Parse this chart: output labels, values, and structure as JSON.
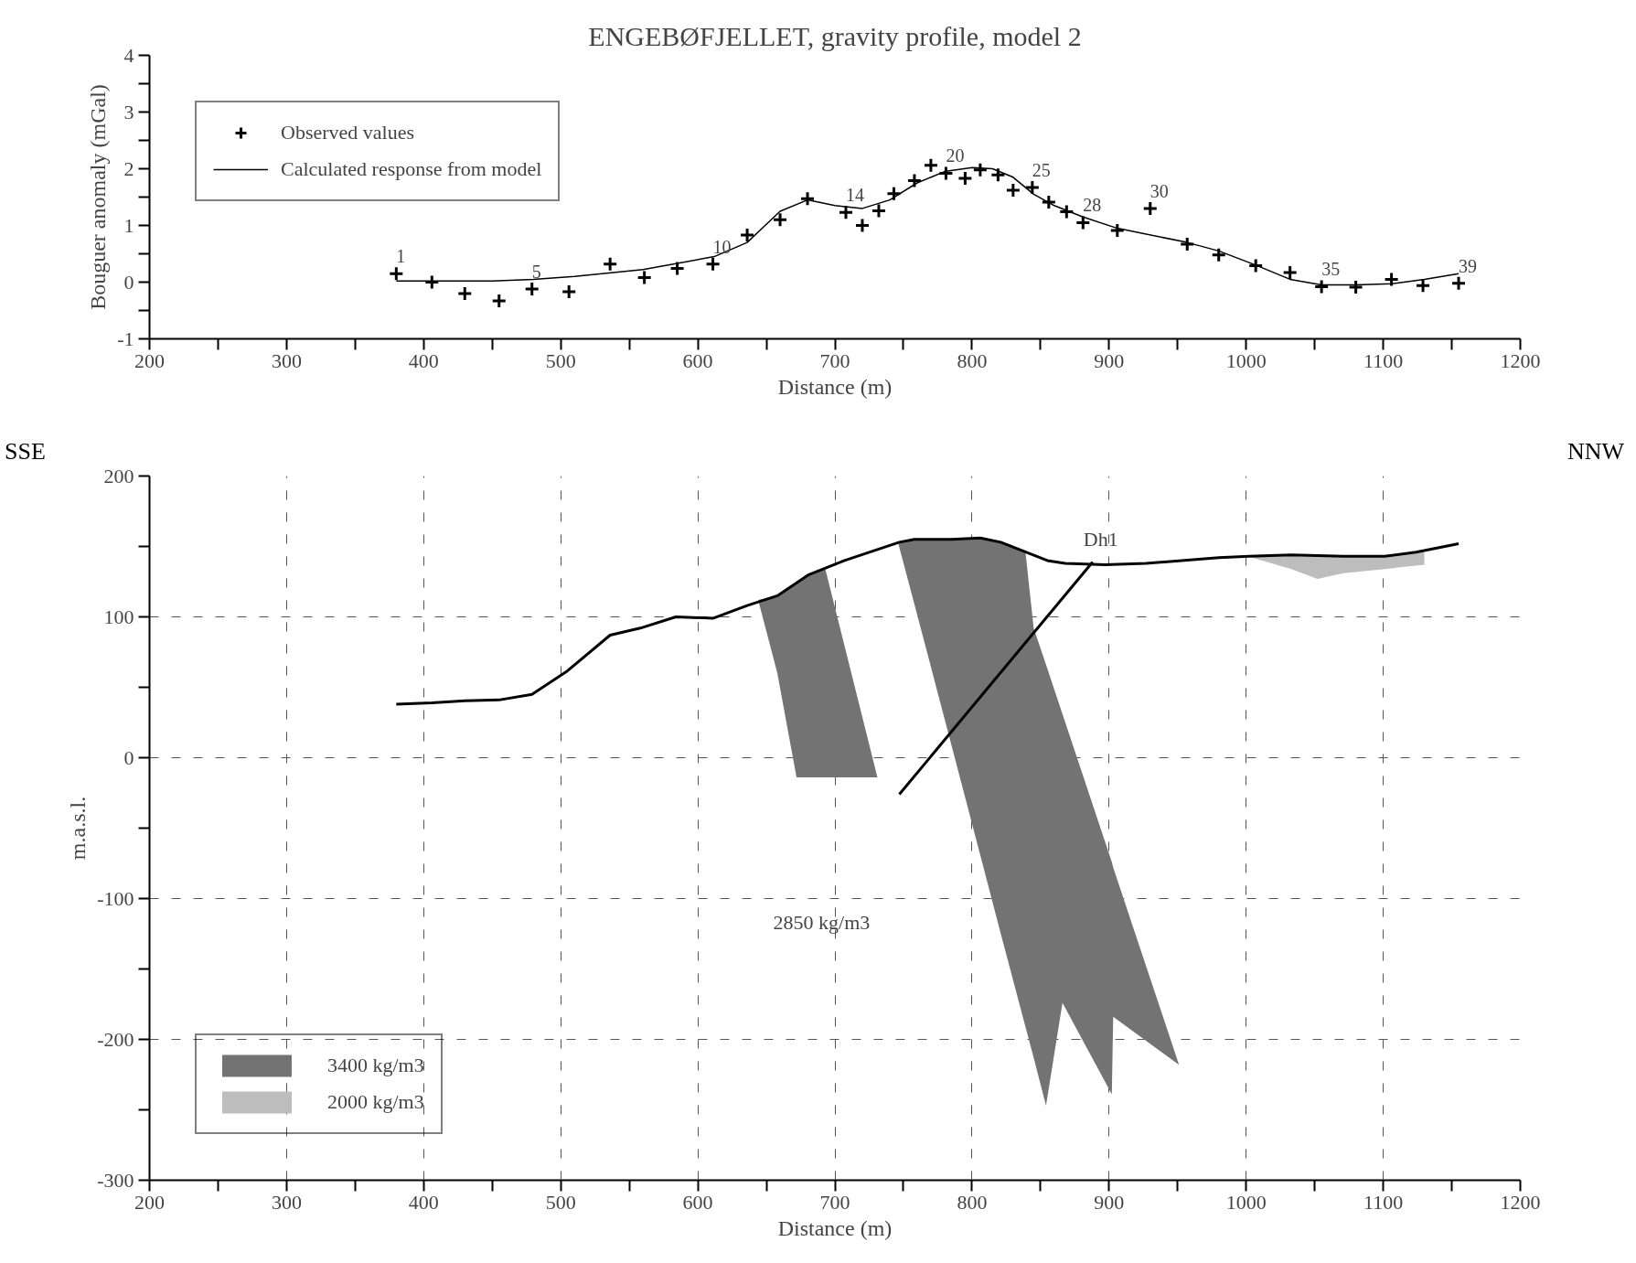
{
  "chart_data": [
    {
      "type": "line",
      "title": "ENGEBØFJELLET, gravity profile, model 2",
      "xlabel": "Distance (m)",
      "ylabel": "Bouguer anomaly (mGal)",
      "xlim": [
        200,
        1200
      ],
      "ylim": [
        -1,
        4
      ],
      "xticks": [
        200,
        {
          "value": 250,
          "label": null
        },
        300,
        {
          "value": 350,
          "label": null
        },
        400,
        {
          "value": 450,
          "label": null
        },
        500,
        {
          "value": 550,
          "label": null
        },
        600,
        {
          "value": 650,
          "label": null
        },
        700,
        {
          "value": 750,
          "label": null
        },
        800,
        {
          "value": 850,
          "label": null
        },
        900,
        {
          "value": 950,
          "label": null
        },
        1000,
        {
          "value": 1050,
          "label": null
        },
        1100,
        {
          "value": 1150,
          "label": null
        },
        1200
      ],
      "yticks": [
        -1,
        {
          "value": -0.5,
          "label": null
        },
        0,
        {
          "value": 0.5,
          "label": null
        },
        1,
        {
          "value": 1.5,
          "label": null
        },
        2,
        {
          "value": 2.5,
          "label": null
        },
        3,
        {
          "value": 3.5,
          "label": null
        },
        4
      ],
      "grid": false,
      "legend": "top left",
      "series": [
        {
          "name": "Observed values",
          "type": "scatter",
          "marker": "cross",
          "color": "#000000",
          "x": [
            380,
            406,
            430,
            455,
            479,
            506,
            536,
            561,
            585,
            611,
            636,
            660,
            680,
            708,
            720,
            732,
            743,
            758,
            770,
            781,
            795,
            806,
            819,
            830,
            844,
            856,
            869,
            881,
            906,
            930,
            957,
            980,
            1007,
            1032,
            1055,
            1080,
            1106,
            1129,
            1155
          ],
          "values": [
            0.15,
            0.0,
            -0.2,
            -0.33,
            -0.12,
            -0.17,
            0.32,
            0.08,
            0.24,
            0.32,
            0.83,
            1.1,
            1.47,
            1.23,
            1.0,
            1.26,
            1.56,
            1.79,
            2.06,
            1.92,
            1.83,
            1.98,
            1.89,
            1.62,
            1.67,
            1.41,
            1.24,
            1.05,
            0.91,
            1.3,
            0.67,
            0.48,
            0.29,
            0.17,
            -0.08,
            -0.09,
            0.05,
            -0.06,
            -0.02
          ]
        },
        {
          "name": "Calculated response from model",
          "color": "#000000",
          "line_style": "solid",
          "x": [
            380,
            406,
            450,
            480,
            510,
            560,
            612,
            636,
            660,
            680,
            700,
            720,
            740,
            760,
            780,
            800,
            815,
            830,
            845,
            860,
            881,
            906,
            957,
            980,
            1007,
            1032,
            1055,
            1080,
            1106,
            1130,
            1155
          ],
          "values": [
            0.02,
            0.02,
            0.02,
            0.05,
            0.1,
            0.22,
            0.45,
            0.7,
            1.25,
            1.45,
            1.35,
            1.3,
            1.45,
            1.75,
            1.95,
            2.02,
            2.0,
            1.85,
            1.55,
            1.35,
            1.15,
            0.95,
            0.7,
            0.55,
            0.3,
            0.05,
            -0.05,
            -0.05,
            -0.03,
            0.05,
            0.15
          ]
        }
      ],
      "annotations": [
        {
          "text": "1",
          "x": 380,
          "y": 0.15
        },
        {
          "text": "5",
          "x": 479,
          "y": -0.12
        },
        {
          "text": "10",
          "x": 611,
          "y": 0.32
        },
        {
          "text": "14",
          "x": 708,
          "y": 1.23
        },
        {
          "text": "20",
          "x": 781,
          "y": 1.92
        },
        {
          "text": "25",
          "x": 844,
          "y": 1.67
        },
        {
          "text": "28",
          "x": 881,
          "y": 1.05
        },
        {
          "text": "30",
          "x": 930,
          "y": 1.3
        },
        {
          "text": "35",
          "x": 1055,
          "y": -0.08
        },
        {
          "text": "39",
          "x": 1155,
          "y": -0.02
        }
      ]
    },
    {
      "type": "line",
      "xlabel": "Distance (m)",
      "ylabel": "m.a.s.l.",
      "xlim": [
        200,
        1200
      ],
      "ylim": [
        -300,
        200
      ],
      "xticks": [
        200,
        {
          "value": 250,
          "label": null
        },
        300,
        {
          "value": 350,
          "label": null
        },
        400,
        {
          "value": 450,
          "label": null
        },
        500,
        {
          "value": 550,
          "label": null
        },
        600,
        {
          "value": 650,
          "label": null
        },
        700,
        {
          "value": 750,
          "label": null
        },
        800,
        {
          "value": 850,
          "label": null
        },
        900,
        {
          "value": 950,
          "label": null
        },
        1000,
        {
          "value": 1050,
          "label": null
        },
        1100,
        {
          "value": 1150,
          "label": null
        },
        1200
      ],
      "yticks": [
        -300,
        {
          "value": -250,
          "label": null
        },
        -200,
        {
          "value": -150,
          "label": null
        },
        -100,
        {
          "value": -50,
          "label": null
        },
        0,
        {
          "value": 50,
          "label": null
        },
        100,
        {
          "value": 150,
          "label": null
        },
        200
      ],
      "grid": true,
      "legend": "bottom left",
      "series": [
        {
          "name": "3400 kg/m3",
          "type": "area",
          "color": "#737373",
          "x": [
            644,
            658,
            672,
            681,
            693,
            731
          ],
          "values": [
            null,
            null,
            null,
            null,
            null,
            null
          ],
          "upper": [
            112,
            115,
            124,
            130,
            134,
            -14
          ],
          "lower": [
            112,
            60,
            -14,
            -14,
            -14,
            -14
          ]
        },
        {
          "type": "area",
          "color": "#737373",
          "x": [
            746,
            758,
            785,
            806,
            821,
            839,
            845,
            854,
            866,
            902,
            903,
            951
          ],
          "values": [
            null,
            null,
            null,
            null,
            null,
            null,
            null,
            null,
            null,
            null,
            null,
            null
          ],
          "upper": [
            153,
            155,
            155,
            156,
            153,
            146,
            92,
            66,
            31,
            -74,
            -78,
            -218
          ],
          "lower": [
            153,
            109,
            9,
            -69,
            -125,
            -191,
            -213,
            -247,
            -174,
            -239,
            -184,
            -218
          ]
        },
        {
          "name": "2000 kg/m3",
          "type": "area",
          "color": "#bdbdbd",
          "x": [
            1001,
            1033,
            1052,
            1071,
            1101,
            1130
          ],
          "values": [
            null,
            null,
            null,
            null,
            null,
            null
          ],
          "upper": [
            143,
            144,
            143.5,
            143,
            143,
            146
          ],
          "lower": [
            143,
            134,
            127,
            131,
            134,
            137
          ]
        },
        {
          "color": "#000000",
          "line_style": "solid",
          "x": [
            380,
            406,
            430,
            455,
            479,
            504,
            536,
            558,
            584,
            611,
            636,
            658,
            681,
            707,
            747,
            758,
            785,
            806,
            821,
            855,
            868,
            897,
            927,
            980,
            1002,
            1033,
            1071,
            1101,
            1124,
            1155
          ],
          "values": [
            38,
            39,
            40.5,
            41,
            45,
            61,
            87,
            92,
            100,
            99,
            108,
            115,
            130,
            140,
            153,
            155,
            155,
            156,
            153,
            140,
            138,
            137,
            138,
            142,
            143,
            144,
            143,
            143,
            146,
            152
          ]
        },
        {
          "name": "Dh1",
          "color": "#000000",
          "line_style": "solid",
          "x": [
            747,
            888
          ],
          "values": [
            -26,
            139
          ]
        }
      ],
      "annotations": [
        "SSE",
        "NNW",
        "2850 kg/m3"
      ]
    }
  ]
}
